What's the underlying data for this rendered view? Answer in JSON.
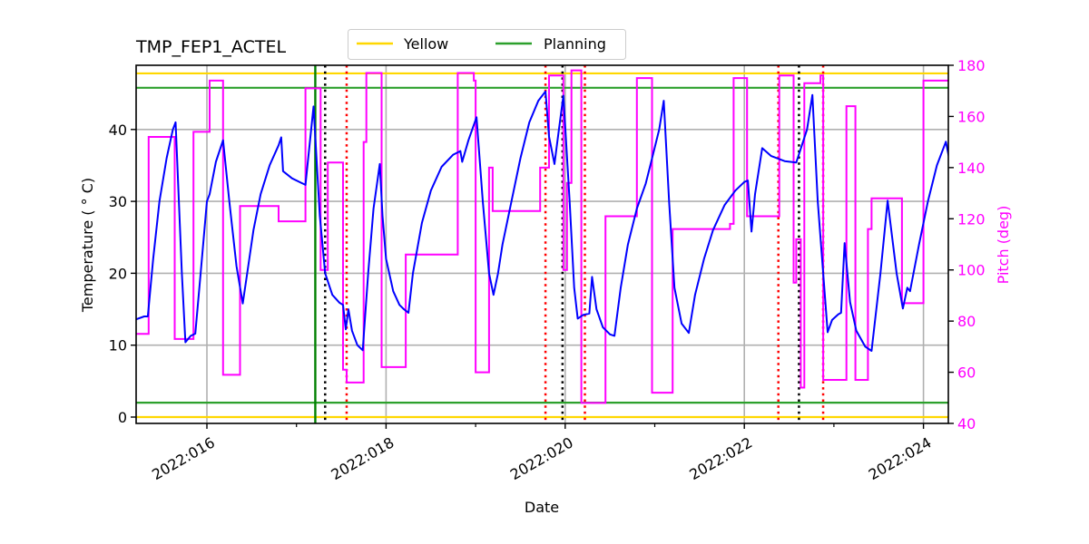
{
  "chart_data": {
    "type": "line",
    "title": "TMP_FEP1_ACTEL",
    "xlabel": "Date",
    "ylabel": "Temperature ($^\\circ$C)",
    "ylabel_display": "Temperature ( ° C)",
    "y2label": "Pitch (deg)",
    "xlim_day": [
      15.21,
      24.28
    ],
    "ylim": [
      -0.9,
      48.9
    ],
    "y2lim": [
      40,
      180
    ],
    "x_ticks": [
      {
        "day": 16,
        "label": "2022:016"
      },
      {
        "day": 18,
        "label": "2022:018"
      },
      {
        "day": 20,
        "label": "2022:020"
      },
      {
        "day": 22,
        "label": "2022:022"
      },
      {
        "day": 24,
        "label": "2022:024"
      }
    ],
    "x_minor_ticks": [
      17,
      19,
      21,
      23
    ],
    "y_ticks": [
      0,
      10,
      20,
      30,
      40
    ],
    "y2_ticks": [
      40,
      60,
      80,
      100,
      120,
      140,
      160,
      180
    ],
    "grid": true,
    "legend": {
      "position": "upper center",
      "entries": [
        {
          "label": "Yellow",
          "color": "#ffd700"
        },
        {
          "label": "Planning",
          "color": "#2ca02c"
        }
      ]
    },
    "limit_lines": {
      "yellow": {
        "values": [
          47.8,
          0.0
        ],
        "color": "#ffd700"
      },
      "planning": {
        "values": [
          45.8,
          2.0
        ],
        "color": "#2ca02c"
      }
    },
    "vertical_lines": [
      {
        "day": 17.21,
        "color": "#008000",
        "style": "solid",
        "meaning": "now"
      },
      {
        "day": 17.32,
        "color": "#000000",
        "style": "dotted"
      },
      {
        "day": 17.56,
        "color": "#ff0000",
        "style": "dotted"
      },
      {
        "day": 19.78,
        "color": "#ff0000",
        "style": "dotted"
      },
      {
        "day": 19.97,
        "color": "#000000",
        "style": "dotted"
      },
      {
        "day": 20.22,
        "color": "#ff0000",
        "style": "dotted"
      },
      {
        "day": 22.38,
        "color": "#ff0000",
        "style": "dotted"
      },
      {
        "day": 22.61,
        "color": "#000000",
        "style": "dotted"
      },
      {
        "day": 22.88,
        "color": "#ff0000",
        "style": "dotted"
      }
    ],
    "series": [
      {
        "name": "Temperature",
        "axis": "left",
        "color": "#0000ff",
        "points": [
          [
            15.21,
            13.6
          ],
          [
            15.3,
            14.0
          ],
          [
            15.34,
            14.0
          ],
          [
            15.4,
            22
          ],
          [
            15.47,
            30
          ],
          [
            15.55,
            36
          ],
          [
            15.62,
            40
          ],
          [
            15.65,
            41.0
          ],
          [
            15.72,
            20
          ],
          [
            15.76,
            10.4
          ],
          [
            15.82,
            11.3
          ],
          [
            15.87,
            11.6
          ],
          [
            15.93,
            20
          ],
          [
            16.0,
            30
          ],
          [
            16.03,
            31
          ],
          [
            16.1,
            35.5
          ],
          [
            16.18,
            38.5
          ],
          [
            16.25,
            30
          ],
          [
            16.33,
            21
          ],
          [
            16.4,
            15.8
          ],
          [
            16.45,
            20
          ],
          [
            16.52,
            26
          ],
          [
            16.6,
            31
          ],
          [
            16.7,
            35
          ],
          [
            16.8,
            37.8
          ],
          [
            16.83,
            38.9
          ],
          [
            16.85,
            34.2
          ],
          [
            16.95,
            33.2
          ],
          [
            17.05,
            32.6
          ],
          [
            17.1,
            32.3
          ],
          [
            17.19,
            43.2
          ],
          [
            17.26,
            28
          ],
          [
            17.32,
            20
          ],
          [
            17.4,
            17
          ],
          [
            17.48,
            15.9
          ],
          [
            17.52,
            15.6
          ],
          [
            17.55,
            12.2
          ],
          [
            17.58,
            15.0
          ],
          [
            17.62,
            12
          ],
          [
            17.68,
            10.0
          ],
          [
            17.74,
            9.3
          ],
          [
            17.8,
            20
          ],
          [
            17.86,
            29
          ],
          [
            17.93,
            35.2
          ],
          [
            17.96,
            28
          ],
          [
            18.0,
            22
          ],
          [
            18.08,
            17.5
          ],
          [
            18.15,
            15.6
          ],
          [
            18.2,
            15.0
          ],
          [
            18.25,
            14.5
          ],
          [
            18.3,
            20
          ],
          [
            18.4,
            27
          ],
          [
            18.5,
            31.5
          ],
          [
            18.62,
            34.8
          ],
          [
            18.75,
            36.5
          ],
          [
            18.83,
            37.0
          ],
          [
            18.85,
            35.5
          ],
          [
            18.92,
            38.5
          ],
          [
            19.01,
            41.7
          ],
          [
            19.08,
            30
          ],
          [
            19.15,
            20
          ],
          [
            19.2,
            17.0
          ],
          [
            19.25,
            20
          ],
          [
            19.3,
            24
          ],
          [
            19.4,
            30
          ],
          [
            19.5,
            36
          ],
          [
            19.6,
            41
          ],
          [
            19.7,
            44
          ],
          [
            19.78,
            45.3
          ],
          [
            19.82,
            39
          ],
          [
            19.88,
            35.2
          ],
          [
            19.93,
            40
          ],
          [
            19.98,
            44.7
          ],
          [
            20.05,
            30
          ],
          [
            20.1,
            18
          ],
          [
            20.14,
            13.7
          ],
          [
            20.2,
            14.2
          ],
          [
            20.27,
            14.4
          ],
          [
            20.3,
            19.5
          ],
          [
            20.35,
            15
          ],
          [
            20.42,
            12.5
          ],
          [
            20.5,
            11.5
          ],
          [
            20.55,
            11.3
          ],
          [
            20.62,
            18
          ],
          [
            20.7,
            24
          ],
          [
            20.8,
            29
          ],
          [
            20.9,
            32.5
          ],
          [
            20.95,
            35
          ],
          [
            21.05,
            40
          ],
          [
            21.1,
            44.0
          ],
          [
            21.16,
            30
          ],
          [
            21.22,
            18
          ],
          [
            21.3,
            13
          ],
          [
            21.38,
            11.7
          ],
          [
            21.45,
            17
          ],
          [
            21.55,
            22
          ],
          [
            21.65,
            26
          ],
          [
            21.78,
            29.5
          ],
          [
            21.9,
            31.5
          ],
          [
            22.0,
            32.7
          ],
          [
            22.04,
            32.9
          ],
          [
            22.08,
            25.8
          ],
          [
            22.12,
            31
          ],
          [
            22.2,
            37.4
          ],
          [
            22.3,
            36.3
          ],
          [
            22.45,
            35.6
          ],
          [
            22.58,
            35.4
          ],
          [
            22.7,
            40
          ],
          [
            22.76,
            44.8
          ],
          [
            22.82,
            30
          ],
          [
            22.88,
            20
          ],
          [
            22.93,
            11.8
          ],
          [
            22.98,
            13.5
          ],
          [
            23.05,
            14.3
          ],
          [
            23.08,
            14.5
          ],
          [
            23.12,
            24.2
          ],
          [
            23.18,
            16
          ],
          [
            23.25,
            12
          ],
          [
            23.35,
            9.8
          ],
          [
            23.42,
            9.2
          ],
          [
            23.52,
            20
          ],
          [
            23.6,
            30.1
          ],
          [
            23.7,
            20
          ],
          [
            23.77,
            15.1
          ],
          [
            23.82,
            18
          ],
          [
            23.85,
            17.5
          ],
          [
            23.95,
            24
          ],
          [
            24.05,
            30
          ],
          [
            24.15,
            35
          ],
          [
            24.25,
            38.3
          ],
          [
            24.38,
            30
          ],
          [
            24.5,
            22
          ],
          [
            24.63,
            17.4
          ],
          [
            24.7,
            25
          ],
          [
            24.8,
            33
          ],
          [
            24.85,
            38.4
          ]
        ]
      },
      {
        "name": "Pitch",
        "axis": "right",
        "color": "#ff00ff",
        "step_points": [
          [
            15.21,
            75
          ],
          [
            15.35,
            75
          ],
          [
            15.35,
            152
          ],
          [
            15.64,
            152
          ],
          [
            15.64,
            73
          ],
          [
            15.85,
            73
          ],
          [
            15.85,
            154
          ],
          [
            16.03,
            154
          ],
          [
            16.03,
            174
          ],
          [
            16.18,
            174
          ],
          [
            16.18,
            59
          ],
          [
            16.37,
            59
          ],
          [
            16.37,
            125
          ],
          [
            16.8,
            125
          ],
          [
            16.8,
            119
          ],
          [
            17.1,
            119
          ],
          [
            17.1,
            171
          ],
          [
            17.27,
            171
          ],
          [
            17.27,
            100
          ],
          [
            17.35,
            100
          ],
          [
            17.35,
            142
          ],
          [
            17.52,
            142
          ],
          [
            17.52,
            61
          ],
          [
            17.56,
            61
          ],
          [
            17.56,
            56
          ],
          [
            17.75,
            56
          ],
          [
            17.75,
            150
          ],
          [
            17.78,
            150
          ],
          [
            17.78,
            177
          ],
          [
            17.95,
            177
          ],
          [
            17.95,
            62
          ],
          [
            18.22,
            62
          ],
          [
            18.22,
            106
          ],
          [
            18.8,
            106
          ],
          [
            18.8,
            177
          ],
          [
            18.98,
            177
          ],
          [
            18.98,
            174
          ],
          [
            19.0,
            174
          ],
          [
            19.0,
            60
          ],
          [
            19.15,
            60
          ],
          [
            19.15,
            140
          ],
          [
            19.19,
            140
          ],
          [
            19.19,
            123
          ],
          [
            19.55,
            123
          ],
          [
            19.55,
            123
          ],
          [
            19.72,
            123
          ],
          [
            19.72,
            140
          ],
          [
            19.82,
            140
          ],
          [
            19.82,
            176
          ],
          [
            19.98,
            176
          ],
          [
            19.98,
            100
          ],
          [
            20.02,
            100
          ],
          [
            20.02,
            134
          ],
          [
            20.07,
            134
          ],
          [
            20.07,
            178
          ],
          [
            20.18,
            178
          ],
          [
            20.18,
            48
          ],
          [
            20.45,
            48
          ],
          [
            20.45,
            121
          ],
          [
            20.8,
            121
          ],
          [
            20.8,
            175
          ],
          [
            20.97,
            175
          ],
          [
            20.97,
            52
          ],
          [
            21.2,
            52
          ],
          [
            21.2,
            116
          ],
          [
            21.84,
            116
          ],
          [
            21.84,
            118
          ],
          [
            21.88,
            118
          ],
          [
            21.88,
            175
          ],
          [
            22.03,
            175
          ],
          [
            22.03,
            121
          ],
          [
            22.39,
            121
          ],
          [
            22.39,
            176
          ],
          [
            22.55,
            176
          ],
          [
            22.55,
            95
          ],
          [
            22.58,
            95
          ],
          [
            22.58,
            112
          ],
          [
            22.63,
            112
          ],
          [
            22.63,
            54
          ],
          [
            22.67,
            54
          ],
          [
            22.67,
            173
          ],
          [
            22.85,
            173
          ],
          [
            22.85,
            176
          ],
          [
            22.88,
            176
          ],
          [
            22.88,
            57
          ],
          [
            23.14,
            57
          ],
          [
            23.14,
            164
          ],
          [
            23.24,
            164
          ],
          [
            23.24,
            57
          ],
          [
            23.38,
            57
          ],
          [
            23.38,
            116
          ],
          [
            23.42,
            116
          ],
          [
            23.42,
            128
          ],
          [
            23.76,
            128
          ],
          [
            23.76,
            87
          ],
          [
            24.0,
            87
          ],
          [
            24.0,
            174
          ],
          [
            24.28,
            174
          ]
        ]
      }
    ]
  },
  "colors": {
    "temperature": "#0000ff",
    "pitch": "#ff00ff",
    "yellow_limit": "#ffd700",
    "planning_limit": "#2ca02c",
    "grid": "#b0b0b0",
    "now_line": "#008000"
  }
}
